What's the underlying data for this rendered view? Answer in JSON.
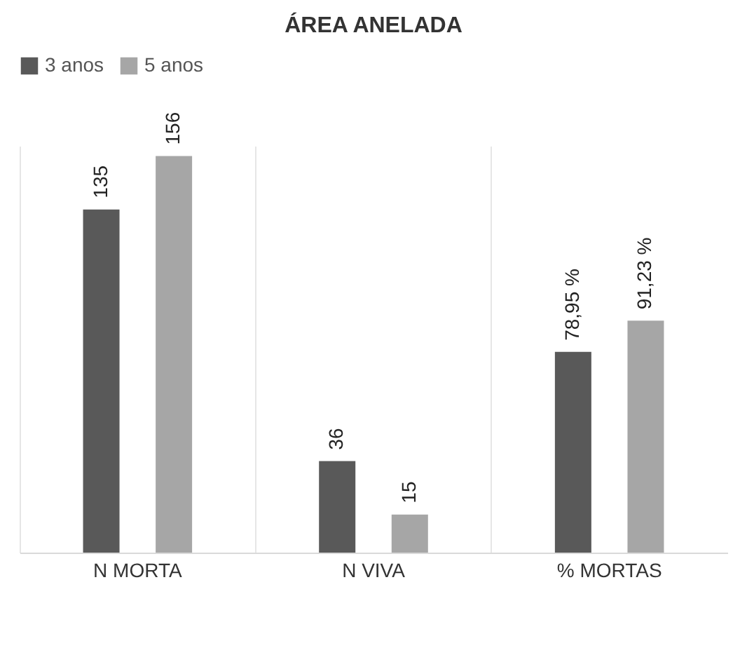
{
  "chart_data": {
    "type": "bar",
    "title": "ÁREA ANELADA",
    "categories": [
      "N MORTA",
      "N VIVA",
      "% MORTAS"
    ],
    "series": [
      {
        "name": "3 anos",
        "color": "#595959",
        "values": [
          135,
          36,
          78.95
        ],
        "value_labels": [
          "135",
          "36",
          "78,95 %"
        ]
      },
      {
        "name": "5 anos",
        "color": "#a6a6a6",
        "values": [
          156,
          15,
          91.23
        ],
        "value_labels": [
          "156",
          "15",
          "91,23 %"
        ]
      }
    ],
    "legend": "top",
    "grid": "x"
  }
}
